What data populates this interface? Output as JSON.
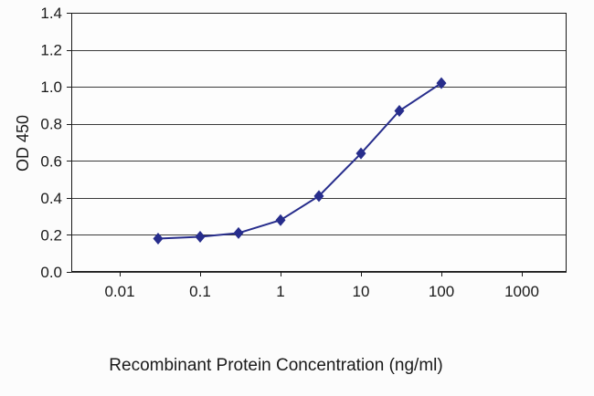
{
  "chart_data": {
    "type": "line",
    "title": "",
    "xlabel": "Recombinant Protein Concentration (ng/ml)",
    "ylabel": "OD 450",
    "x_scale": "log",
    "xlim": [
      0.01,
      1000
    ],
    "ylim": [
      0.0,
      1.4
    ],
    "x_ticks": [
      0.01,
      0.1,
      1,
      10,
      100,
      1000
    ],
    "x_tick_labels": [
      "0.01",
      "0.1",
      "1",
      "10",
      "100",
      "1000"
    ],
    "y_ticks": [
      0.0,
      0.2,
      0.4,
      0.6,
      0.8,
      1.0,
      1.2,
      1.4
    ],
    "y_tick_labels": [
      "0.0",
      "0.2",
      "0.4",
      "0.6",
      "0.8",
      "1.0",
      "1.2",
      "1.4"
    ],
    "grid": "horizontal",
    "legend": "none",
    "marker": "diamond",
    "colors": {
      "series": "#272d8c",
      "grid": "#3a3a3a",
      "axis": "#1a1a1a",
      "text": "#1a1a1a",
      "plot_background": "#fdfdfd"
    },
    "series": [
      {
        "name": "OD 450",
        "color": "#272d8c",
        "points": [
          {
            "x": 0.03,
            "y": 0.18
          },
          {
            "x": 0.1,
            "y": 0.19
          },
          {
            "x": 0.3,
            "y": 0.21
          },
          {
            "x": 1,
            "y": 0.28
          },
          {
            "x": 3,
            "y": 0.41
          },
          {
            "x": 10,
            "y": 0.64
          },
          {
            "x": 30,
            "y": 0.87
          },
          {
            "x": 100,
            "y": 1.02
          }
        ]
      }
    ]
  }
}
